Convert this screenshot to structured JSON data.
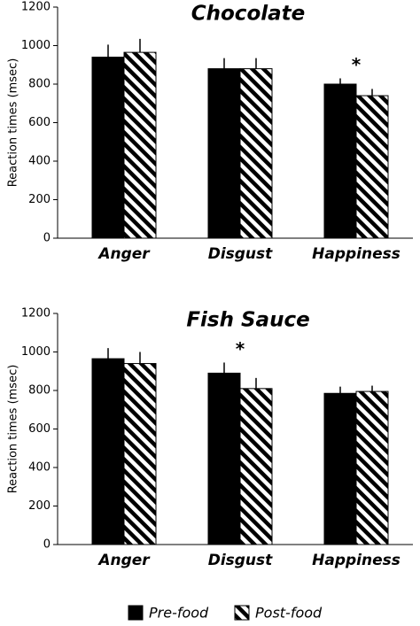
{
  "chart_data": [
    {
      "type": "bar",
      "title": "Chocolate",
      "ylabel": "Reaction times (msec)",
      "categories": [
        "Anger",
        "Disgust",
        "Happiness"
      ],
      "series": [
        {
          "pattern": "solid",
          "color": "#000000",
          "values": [
            940,
            880,
            800
          ],
          "errors": [
            65,
            55,
            30
          ]
        },
        {
          "pattern": "hatch",
          "color": "#000000",
          "values": [
            965,
            880,
            740
          ],
          "errors": [
            70,
            55,
            35
          ]
        }
      ],
      "ylim": [
        0,
        1200
      ],
      "yticks": [
        0,
        200,
        400,
        600,
        800,
        1000,
        1200
      ],
      "annotations": [
        {
          "text": "*",
          "category": "Happiness"
        }
      ]
    },
    {
      "type": "bar",
      "title": "Fish Sauce",
      "ylabel": "Reaction times (msec)",
      "categories": [
        "Anger",
        "Disgust",
        "Happiness"
      ],
      "series": [
        {
          "pattern": "solid",
          "color": "#000000",
          "values": [
            965,
            890,
            785
          ],
          "errors": [
            55,
            55,
            35
          ]
        },
        {
          "pattern": "hatch",
          "color": "#000000",
          "values": [
            940,
            810,
            795
          ],
          "errors": [
            60,
            55,
            30
          ]
        }
      ],
      "ylim": [
        0,
        1200
      ],
      "yticks": [
        0,
        200,
        400,
        600,
        800,
        1000,
        1200
      ],
      "annotations": [
        {
          "text": "*",
          "category": "Disgust"
        }
      ]
    }
  ],
  "legend": [
    {
      "name": "Pre-food",
      "pattern": "solid",
      "color": "#000000"
    },
    {
      "name": "Post-food",
      "pattern": "hatch",
      "color": "#000000"
    }
  ]
}
